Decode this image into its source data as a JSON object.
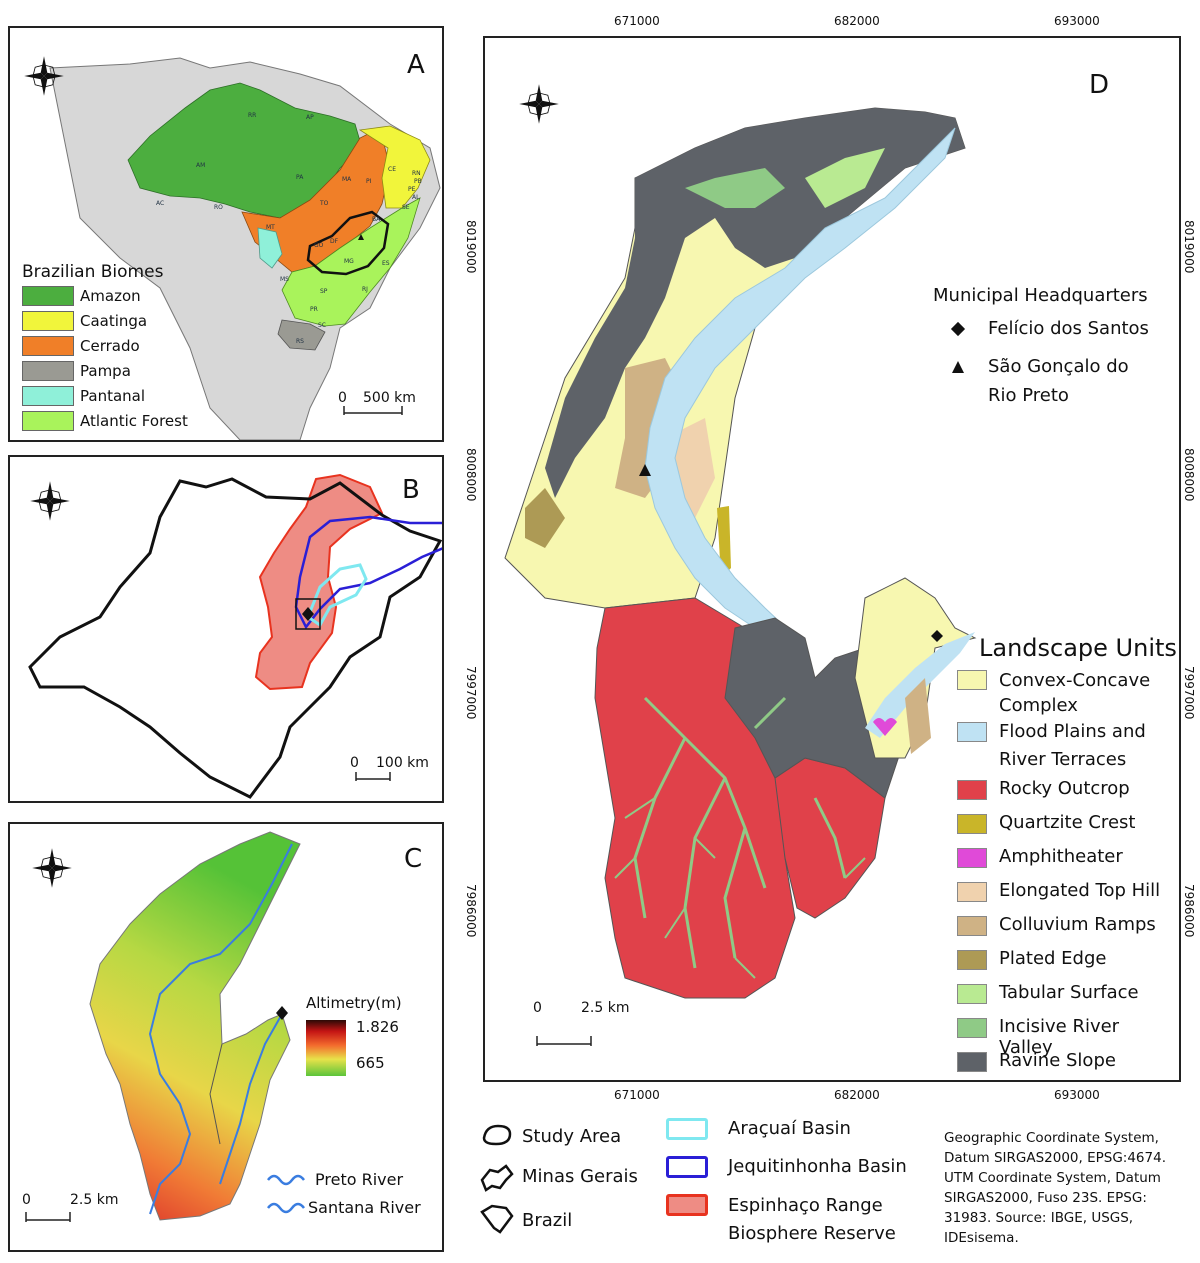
{
  "panels": {
    "a": {
      "letter": "A"
    },
    "b": {
      "letter": "B"
    },
    "c": {
      "letter": "C"
    },
    "d": {
      "letter": "D"
    }
  },
  "panel_a": {
    "legend_title": "Brazilian Biomes",
    "biomes": [
      {
        "name": "Amazon",
        "color": "#4cae3f"
      },
      {
        "name": "Caatinga",
        "color": "#f1f53b"
      },
      {
        "name": "Cerrado",
        "color": "#f07f28"
      },
      {
        "name": "Pampa",
        "color": "#9a9a93"
      },
      {
        "name": "Pantanal",
        "color": "#8ff0d9"
      },
      {
        "name": "Atlantic Forest",
        "color": "#a9f35b"
      }
    ],
    "scale": {
      "zero": "0",
      "label": "500 km"
    },
    "state_labels": [
      "RR",
      "AP",
      "AM",
      "PA",
      "MA",
      "CE",
      "RN",
      "PB",
      "PE",
      "AL",
      "SE",
      "PI",
      "AC",
      "RO",
      "TO",
      "BA",
      "MT",
      "GO",
      "DF",
      "MG",
      "ES",
      "MS",
      "SP",
      "RJ",
      "PR",
      "SC",
      "RS"
    ]
  },
  "panel_b": {
    "scale": {
      "zero": "0",
      "label": "100 km"
    }
  },
  "panel_c": {
    "legend_title": "Altimetry(m)",
    "max_label": "1.826",
    "min_label": "665",
    "rivers": [
      {
        "name": "Preto River"
      },
      {
        "name": "Santana River"
      }
    ],
    "scale": {
      "zero": "0",
      "label": "2.5 km"
    }
  },
  "panel_d": {
    "top_ticks": [
      "671000",
      "682000",
      "693000"
    ],
    "bottom_ticks": [
      "671000",
      "682000",
      "693000"
    ],
    "left_ticks": [
      "8019000",
      "8008000",
      "7997000",
      "7986000"
    ],
    "right_ticks": [
      "8019000",
      "8008000",
      "7997000",
      "7986000"
    ],
    "hq_title": "Municipal Headquarters",
    "hq_items": [
      {
        "symbol": "diamond",
        "name": "Felício dos Santos"
      },
      {
        "symbol": "triangle",
        "name": "São Gonçalo do Rio Preto"
      }
    ],
    "legend_title": "Landscape Units",
    "units": [
      {
        "name": "Convex-Concave Complex",
        "color": "#f7f7b0"
      },
      {
        "name": "Flood Plains and River Terraces",
        "color": "#bfe2f3"
      },
      {
        "name": "Rocky Outcrop",
        "color": "#e0414a"
      },
      {
        "name": "Quartzite Crest",
        "color": "#c9b529"
      },
      {
        "name": "Amphitheater",
        "color": "#e04ad8"
      },
      {
        "name": "Elongated Top Hill",
        "color": "#f0d2ae"
      },
      {
        "name": "Colluvium Ramps",
        "color": "#cfb285"
      },
      {
        "name": "Plated Edge",
        "color": "#ad9a55"
      },
      {
        "name": "Tabular Surface",
        "color": "#b9ea92"
      },
      {
        "name": "Incisive River Valley",
        "color": "#8fca86"
      },
      {
        "name": "Ravine Slope",
        "color": "#5e6268"
      }
    ],
    "scale": {
      "zero": "0",
      "label": "2.5 km"
    }
  },
  "bottom_legend": {
    "outline_items": [
      {
        "name": "Study Area"
      },
      {
        "name": "Minas Gerais"
      },
      {
        "name": "Brazil"
      }
    ],
    "basins": [
      {
        "name": "Araçuaí Basin",
        "color": "#7fe8f0"
      },
      {
        "name": "Jequitinhonha Basin",
        "color": "#2a1fd6"
      },
      {
        "name": "Espinhaço Range Biosphere Reserve",
        "color": "#ee8c84"
      }
    ],
    "source_text": "Geographic Coordinate System, Datum SIRGAS2000, EPSG:4674. UTM Coordinate System, Datum SIRGAS2000, Fuso 23S. EPSG: 31983. Source: IBGE, USGS, IDEsisema."
  }
}
